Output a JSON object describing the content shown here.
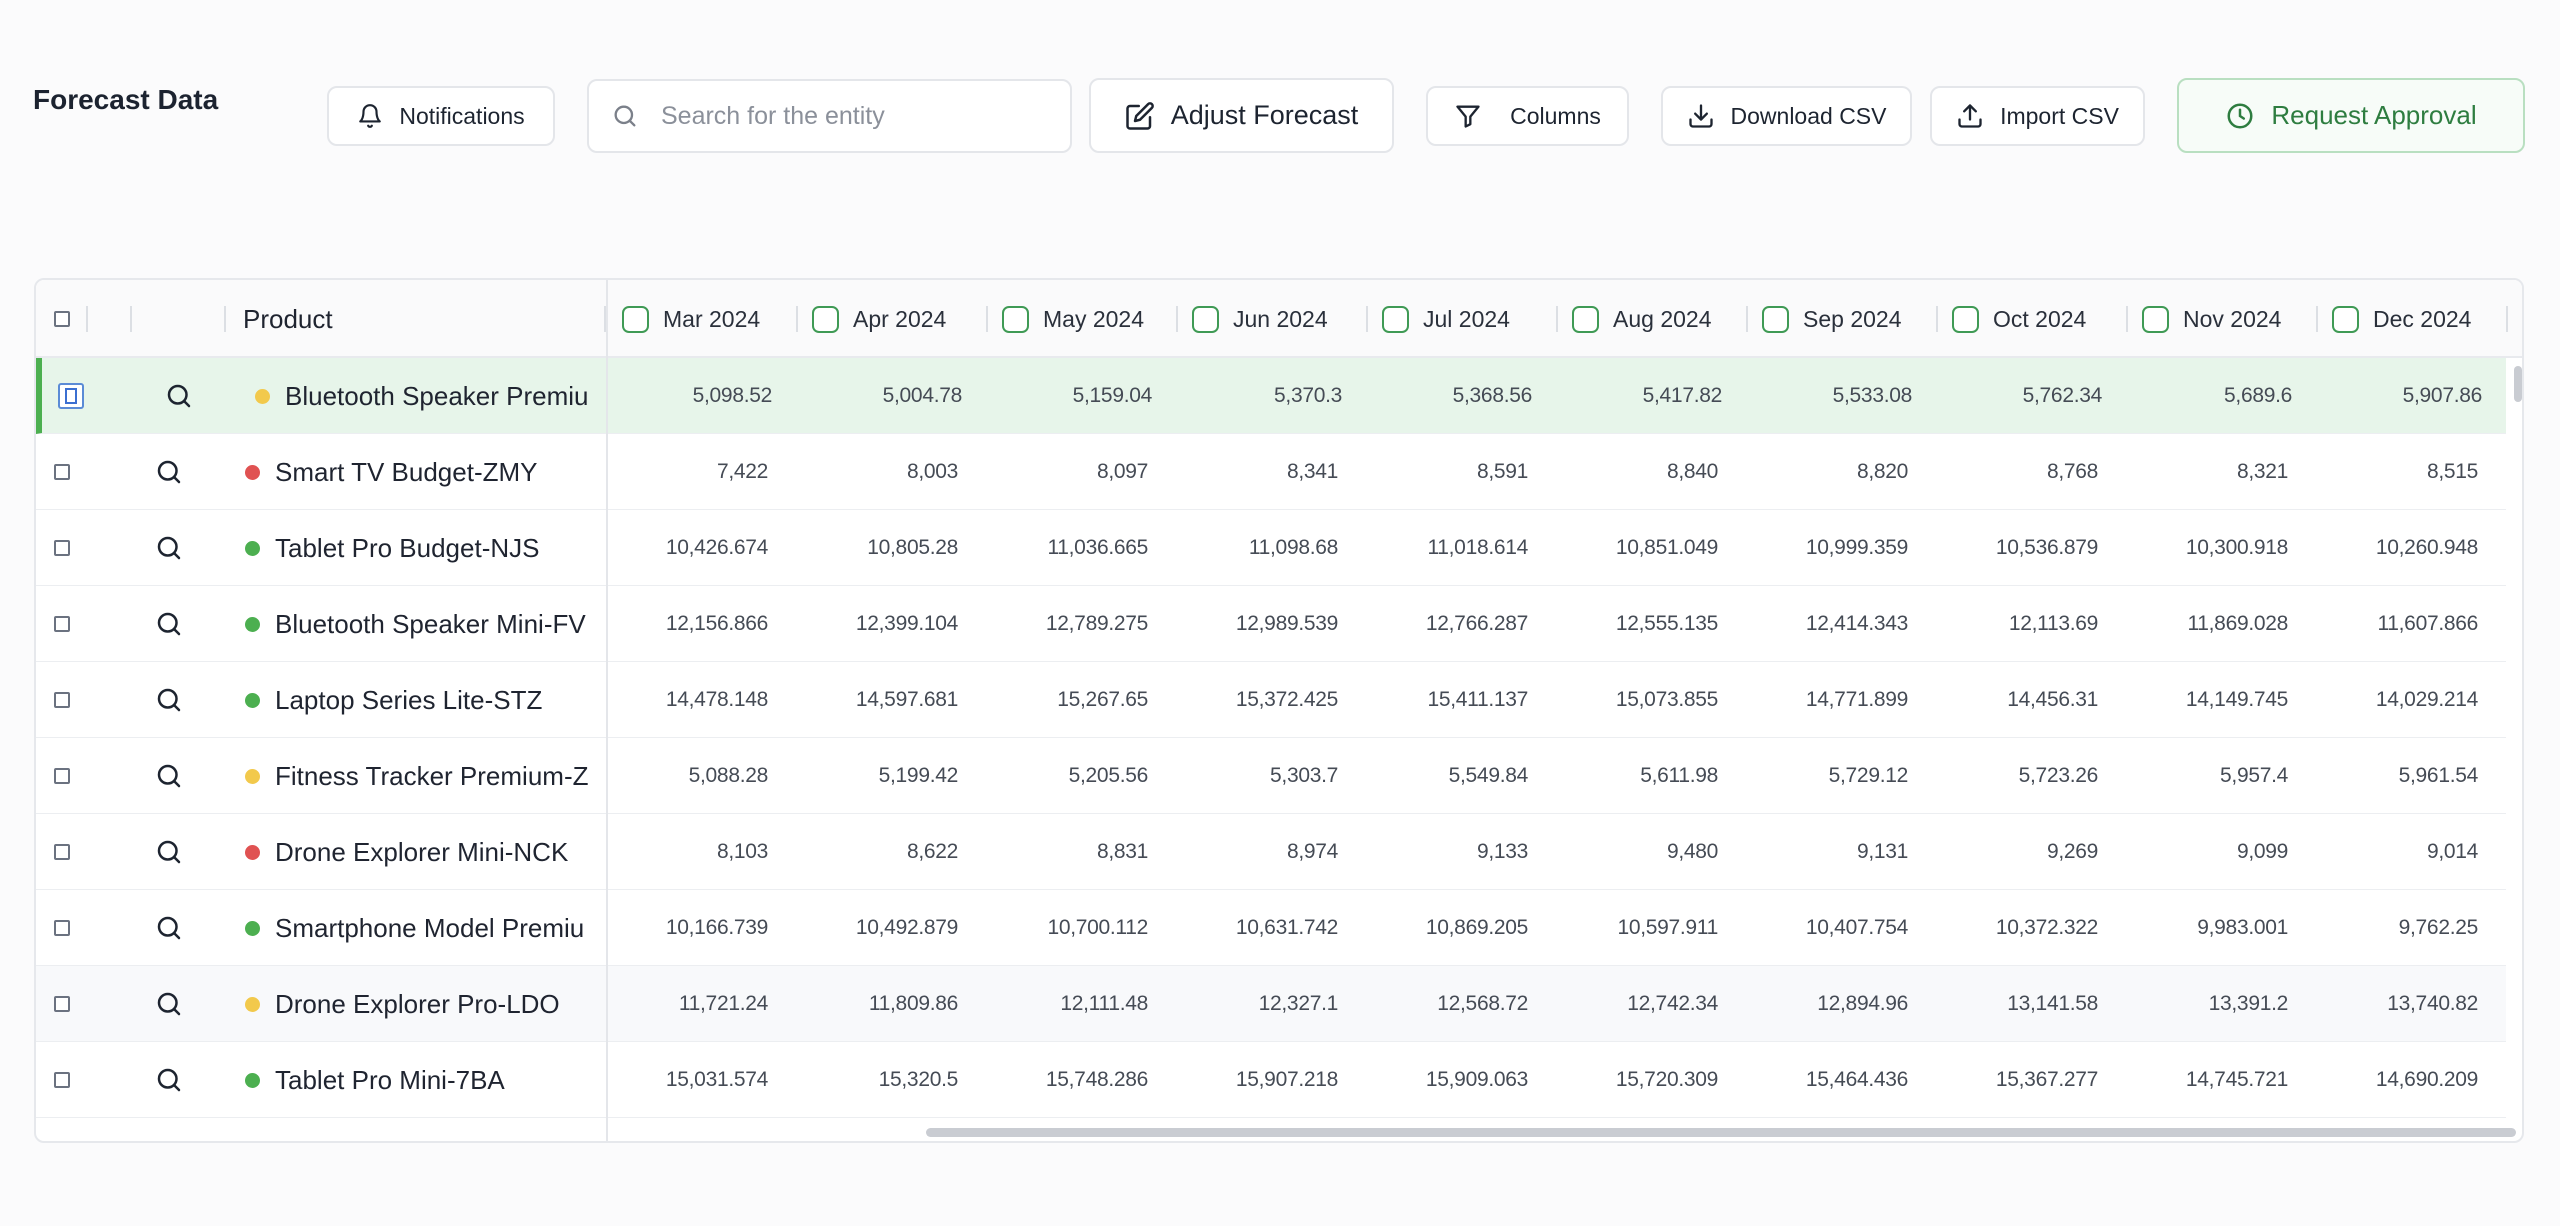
{
  "page": {
    "title": "Forecast Data"
  },
  "toolbar": {
    "notifications_label": "Notifications",
    "search_placeholder": "Search for the entity",
    "adjust_label": "Adjust Forecast",
    "columns_label": "Columns",
    "download_label": "Download CSV",
    "import_label": "Import CSV",
    "approval_label": "Request Approval"
  },
  "colors": {
    "accent": "#2e7d40",
    "selected_row": "#e7f5ea",
    "status_green": "#4caf50",
    "status_yellow": "#f2c94c",
    "status_red": "#e05252"
  },
  "grid": {
    "product_header": "Product",
    "months": [
      "Mar 2024",
      "Apr 2024",
      "May 2024",
      "Jun 2024",
      "Jul 2024",
      "Aug 2024",
      "Sep 2024",
      "Oct 2024",
      "Nov 2024",
      "Dec 2024"
    ],
    "rows": [
      {
        "product": "Bluetooth Speaker Premiu",
        "status": "yellow",
        "selected": true,
        "values": [
          "5,098.52",
          "5,004.78",
          "5,159.04",
          "5,370.3",
          "5,368.56",
          "5,417.82",
          "5,533.08",
          "5,762.34",
          "5,689.6",
          "5,907.86"
        ]
      },
      {
        "product": "Smart TV Budget-ZMY",
        "status": "red",
        "values": [
          "7,422",
          "8,003",
          "8,097",
          "8,341",
          "8,591",
          "8,840",
          "8,820",
          "8,768",
          "8,321",
          "8,515"
        ]
      },
      {
        "product": "Tablet Pro Budget-NJS",
        "status": "green",
        "values": [
          "10,426.674",
          "10,805.28",
          "11,036.665",
          "11,098.68",
          "11,018.614",
          "10,851.049",
          "10,999.359",
          "10,536.879",
          "10,300.918",
          "10,260.948"
        ]
      },
      {
        "product": "Bluetooth Speaker Mini-FV",
        "status": "green",
        "values": [
          "12,156.866",
          "12,399.104",
          "12,789.275",
          "12,989.539",
          "12,766.287",
          "12,555.135",
          "12,414.343",
          "12,113.69",
          "11,869.028",
          "11,607.866"
        ]
      },
      {
        "product": "Laptop Series Lite-STZ",
        "status": "green",
        "values": [
          "14,478.148",
          "14,597.681",
          "15,267.65",
          "15,372.425",
          "15,411.137",
          "15,073.855",
          "14,771.899",
          "14,456.31",
          "14,149.745",
          "14,029.214"
        ]
      },
      {
        "product": "Fitness Tracker Premium-Z",
        "status": "yellow",
        "values": [
          "5,088.28",
          "5,199.42",
          "5,205.56",
          "5,303.7",
          "5,549.84",
          "5,611.98",
          "5,729.12",
          "5,723.26",
          "5,957.4",
          "5,961.54"
        ]
      },
      {
        "product": "Drone Explorer Mini-NCK",
        "status": "red",
        "values": [
          "8,103",
          "8,622",
          "8,831",
          "8,974",
          "9,133",
          "9,480",
          "9,131",
          "9,269",
          "9,099",
          "9,014"
        ]
      },
      {
        "product": "Smartphone Model Premiu",
        "status": "green",
        "values": [
          "10,166.739",
          "10,492.879",
          "10,700.112",
          "10,631.742",
          "10,869.205",
          "10,597.911",
          "10,407.754",
          "10,372.322",
          "9,983.001",
          "9,762.25"
        ]
      },
      {
        "product": "Drone Explorer Pro-LDO",
        "status": "yellow",
        "values": [
          "11,721.24",
          "11,809.86",
          "12,111.48",
          "12,327.1",
          "12,568.72",
          "12,742.34",
          "12,894.96",
          "13,141.58",
          "13,391.2",
          "13,740.82"
        ]
      },
      {
        "product": "Tablet Pro Mini-7BA",
        "status": "green",
        "values": [
          "15,031.574",
          "15,320.5",
          "15,748.286",
          "15,907.218",
          "15,909.063",
          "15,720.309",
          "15,464.436",
          "15,367.277",
          "14,745.721",
          "14,690.209"
        ]
      }
    ]
  }
}
